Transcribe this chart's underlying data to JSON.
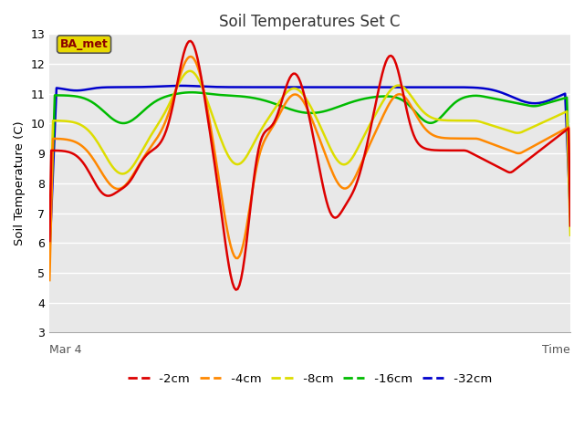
{
  "title": "Soil Temperatures Set C",
  "xlabel": "Time",
  "ylabel": "Soil Temperature (C)",
  "ylim": [
    3.0,
    13.0
  ],
  "yticks": [
    3.0,
    4.0,
    5.0,
    6.0,
    7.0,
    8.0,
    9.0,
    10.0,
    11.0,
    12.0,
    13.0
  ],
  "x_start_label": "Mar 4",
  "fig_bg_color": "#ffffff",
  "plot_bg_color": "#e8e8e8",
  "grid_color": "#ffffff",
  "annotation_text": "BA_met",
  "annotation_color": "#8b0000",
  "annotation_bg": "#e8d800",
  "annotation_border": "#555555",
  "series_colors": {
    "-2cm": "#dd0000",
    "-4cm": "#ff8800",
    "-8cm": "#dddd00",
    "-16cm": "#00bb00",
    "-32cm": "#0000cc"
  },
  "legend_dash": "--",
  "n_points": 300
}
